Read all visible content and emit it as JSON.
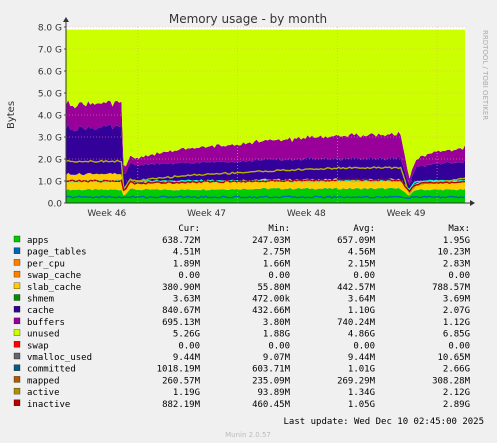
{
  "chart_data": {
    "type": "area",
    "title": "Memory usage - by month",
    "ylabel": "Bytes",
    "watermark": "RRDTOOL / TOBI OETIKER",
    "ylim": [
      0,
      8.0
    ],
    "yunit": "G",
    "yticks": [
      "0.0",
      "1.0 G",
      "2.0 G",
      "3.0 G",
      "4.0 G",
      "5.0 G",
      "6.0 G",
      "7.0 G",
      "8.0 G"
    ],
    "xticks": [
      {
        "label": "Week 46",
        "pos": 0.18
      },
      {
        "label": "Week 47",
        "pos": 0.43
      },
      {
        "label": "Week 48",
        "pos": 0.68
      },
      {
        "label": "Week 49",
        "pos": 0.93
      }
    ],
    "grid": true,
    "stack_order": [
      "apps",
      "page_tables",
      "per_cpu",
      "swap_cache",
      "slab_cache",
      "swap",
      "vmalloc_used",
      "shmem",
      "cache",
      "buffers",
      "unused"
    ],
    "line_series": [
      "committed",
      "mapped",
      "active",
      "inactive"
    ],
    "x_knots": [
      0,
      0.14,
      0.145,
      0.16,
      0.17,
      0.3,
      0.5,
      0.7,
      0.84,
      0.86,
      0.875,
      0.9,
      0.91,
      1.0
    ],
    "series": [
      {
        "name": "apps",
        "color": "#00cc00",
        "values": [
          0.6,
          0.6,
          0.3,
          0.65,
          0.6,
          0.6,
          0.65,
          0.65,
          0.65,
          0.3,
          0.6,
          0.6,
          0.6,
          0.6
        ]
      },
      {
        "name": "page_tables",
        "color": "#0066b3",
        "values": [
          0.005,
          0.005,
          0.005,
          0.005,
          0.005,
          0.005,
          0.005,
          0.005,
          0.005,
          0.005,
          0.005,
          0.005,
          0.005,
          0.005
        ]
      },
      {
        "name": "per_cpu",
        "color": "#ff8000",
        "values": [
          0.002,
          0.002,
          0.002,
          0.002,
          0.002,
          0.002,
          0.002,
          0.002,
          0.002,
          0.002,
          0.002,
          0.002,
          0.002,
          0.002
        ]
      },
      {
        "name": "swap_cache",
        "color": "#ffcc00",
        "values": [
          0,
          0,
          0,
          0,
          0,
          0,
          0,
          0,
          0,
          0,
          0,
          0,
          0,
          0
        ]
      },
      {
        "name": "slab_cache",
        "color": "#ffcc00",
        "values": [
          0.7,
          0.7,
          0.2,
          0.35,
          0.3,
          0.35,
          0.4,
          0.4,
          0.4,
          0.15,
          0.3,
          0.35,
          0.35,
          0.4
        ]
      },
      {
        "name": "swap",
        "color": "#ff0000",
        "values": [
          0,
          0,
          0,
          0,
          0,
          0,
          0,
          0,
          0,
          0,
          0,
          0,
          0,
          0
        ]
      },
      {
        "name": "vmalloc_used",
        "color": "#999999",
        "values": [
          0.01,
          0.01,
          0.01,
          0.01,
          0.01,
          0.01,
          0.01,
          0.01,
          0.01,
          0.01,
          0.01,
          0.01,
          0.01,
          0.01
        ]
      },
      {
        "name": "shmem",
        "color": "#008f00",
        "values": [
          0.004,
          0.004,
          0.004,
          0.004,
          0.004,
          0.004,
          0.004,
          0.004,
          0.004,
          0.004,
          0.004,
          0.004,
          0.004,
          0.004
        ]
      },
      {
        "name": "cache",
        "color": "#330099",
        "values": [
          2.1,
          2.1,
          0.6,
          0.8,
          0.8,
          0.85,
          0.9,
          0.95,
          0.95,
          0.3,
          0.7,
          0.75,
          0.75,
          0.85
        ]
      },
      {
        "name": "buffers",
        "color": "#990099",
        "values": [
          1.1,
          1.1,
          0.3,
          0.3,
          0.3,
          0.65,
          0.85,
          1.05,
          1.1,
          0.3,
          0.3,
          0.5,
          0.5,
          0.65
        ]
      },
      {
        "name": "unused",
        "color": "#ccff00",
        "values": [
          3.29,
          3.29,
          6.49,
          5.84,
          5.99,
          5.59,
          5.19,
          4.79,
          4.69,
          6.89,
          6.09,
          5.59,
          5.59,
          5.29
        ]
      },
      {
        "name": "committed",
        "color": "#00ffcc",
        "values": [
          1.0,
          1.0,
          0.6,
          1.0,
          1.0,
          1.0,
          1.0,
          1.0,
          1.0,
          0.6,
          1.0,
          1.0,
          1.0,
          1.0
        ]
      },
      {
        "name": "mapped",
        "color": "#0066b3",
        "values": [
          0.27,
          0.27,
          0.24,
          0.27,
          0.27,
          0.27,
          0.27,
          0.27,
          0.27,
          0.24,
          0.27,
          0.27,
          0.27,
          0.27
        ]
      },
      {
        "name": "active",
        "color": "#b3b300",
        "values": [
          1.9,
          1.9,
          0.5,
          1.1,
          1.0,
          1.25,
          1.45,
          1.6,
          1.6,
          0.4,
          0.8,
          0.9,
          0.9,
          1.1
        ]
      },
      {
        "name": "inactive",
        "color": "#b30000",
        "values": [
          1.0,
          1.0,
          0.5,
          0.95,
          0.9,
          0.95,
          1.0,
          1.05,
          1.05,
          0.5,
          0.85,
          0.9,
          0.9,
          0.95
        ]
      }
    ]
  },
  "legend": {
    "headers": {
      "cur": "Cur:",
      "min": "Min:",
      "avg": "Avg:",
      "max": "Max:"
    },
    "rows": [
      {
        "name": "apps",
        "color": "#00cc00",
        "cur": "638.72M",
        "min": "247.03M",
        "avg": "657.09M",
        "max": "1.95G"
      },
      {
        "name": "page_tables",
        "color": "#0066b3",
        "cur": "4.51M",
        "min": "2.75M",
        "avg": "4.56M",
        "max": "10.23M"
      },
      {
        "name": "per_cpu",
        "color": "#ff8000",
        "cur": "1.89M",
        "min": "1.66M",
        "avg": "2.15M",
        "max": "2.83M"
      },
      {
        "name": "swap_cache",
        "color": "#ff8000",
        "cur": "0.00",
        "min": "0.00",
        "avg": "0.00",
        "max": "0.00"
      },
      {
        "name": "slab_cache",
        "color": "#ffcc00",
        "cur": "380.90M",
        "min": "55.80M",
        "avg": "442.57M",
        "max": "788.57M"
      },
      {
        "name": "shmem",
        "color": "#008f00",
        "cur": "3.63M",
        "min": "472.00k",
        "avg": "3.64M",
        "max": "3.69M"
      },
      {
        "name": "cache",
        "color": "#330099",
        "cur": "840.67M",
        "min": "432.66M",
        "avg": "1.10G",
        "max": "2.07G"
      },
      {
        "name": "buffers",
        "color": "#990099",
        "cur": "695.13M",
        "min": "3.80M",
        "avg": "740.24M",
        "max": "1.12G"
      },
      {
        "name": "unused",
        "color": "#ccff00",
        "cur": "5.26G",
        "min": "1.88G",
        "avg": "4.86G",
        "max": "6.85G"
      },
      {
        "name": "swap",
        "color": "#ff0000",
        "cur": "0.00",
        "min": "0.00",
        "avg": "0.00",
        "max": "0.00"
      },
      {
        "name": "vmalloc_used",
        "color": "#666666",
        "cur": "9.44M",
        "min": "9.07M",
        "avg": "9.44M",
        "max": "10.65M"
      },
      {
        "name": "committed",
        "color": "#005d82",
        "cur": "1018.19M",
        "min": "603.71M",
        "avg": "1.01G",
        "max": "2.66G"
      },
      {
        "name": "mapped",
        "color": "#b35a00",
        "cur": "260.57M",
        "min": "235.09M",
        "avg": "269.29M",
        "max": "308.28M"
      },
      {
        "name": "active",
        "color": "#b38f00",
        "cur": "1.19G",
        "min": "93.89M",
        "avg": "1.34G",
        "max": "2.12G"
      },
      {
        "name": "inactive",
        "color": "#b30000",
        "cur": "882.19M",
        "min": "460.45M",
        "avg": "1.05G",
        "max": "2.89G"
      }
    ]
  },
  "footer": {
    "last_update": "Last update: Wed Dec 10 02:45:00 2025",
    "version": "Munin 2.0.57"
  }
}
